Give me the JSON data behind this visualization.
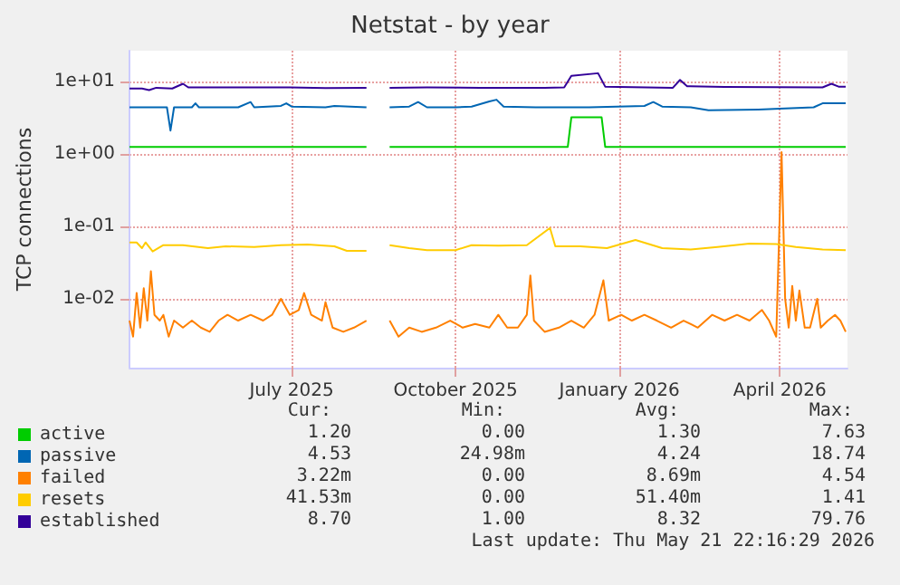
{
  "chart_data": {
    "type": "line",
    "title": "Netstat - by year",
    "ylabel": "TCP connections",
    "log": "y",
    "grid": true,
    "legend": "bottom left",
    "marker": "none",
    "line_style": "solid",
    "xlim": [
      "2025-04-01",
      "2026-05-09"
    ],
    "xticks": [
      {
        "value": "2025-07-01",
        "label": "July 2025"
      },
      {
        "value": "2025-10-01",
        "label": "October 2025"
      },
      {
        "value": "2026-01-01",
        "label": "January 2026"
      },
      {
        "value": "2026-04-01",
        "label": "April 2026"
      }
    ],
    "ylim": [
      0.00112,
      26.6
    ],
    "yticks": [
      {
        "value": 0.01,
        "label": "1e-02"
      },
      {
        "value": 0.1,
        "label": "1e-01"
      },
      {
        "value": 1,
        "label": "1e+00"
      },
      {
        "value": 10,
        "label": "1e+01"
      }
    ],
    "series": [
      {
        "name": "active",
        "color": "#00cc00",
        "x": [
          "2025-04-01",
          "2025-08-12",
          "2025-08-18",
          "2025-08-25",
          "2025-12-03",
          "2025-12-05",
          "2025-12-22",
          "2025-12-24",
          "2026-05-08"
        ],
        "values": [
          1.25,
          1.25,
          null,
          1.25,
          1.25,
          3.2,
          3.2,
          1.25,
          1.25
        ]
      },
      {
        "name": "passive",
        "color": "#0066b3",
        "x": [
          "2025-04-01",
          "2025-04-18",
          "2025-04-22",
          "2025-04-24",
          "2025-04-26",
          "2025-05-06",
          "2025-05-08",
          "2025-05-10",
          "2025-06-01",
          "2025-06-08",
          "2025-06-10",
          "2025-06-25",
          "2025-06-28",
          "2025-07-01",
          "2025-07-20",
          "2025-07-25",
          "2025-08-12",
          "2025-08-18",
          "2025-08-25",
          "2025-09-05",
          "2025-09-10",
          "2025-09-15",
          "2025-10-01",
          "2025-10-10",
          "2025-10-20",
          "2025-10-24",
          "2025-10-28",
          "2025-11-15",
          "2025-12-15",
          "2026-01-15",
          "2026-01-20",
          "2026-01-25",
          "2026-02-10",
          "2026-02-20",
          "2026-03-20",
          "2026-04-01",
          "2026-04-20",
          "2026-04-25",
          "2026-05-08"
        ],
        "values": [
          4.4,
          4.4,
          4.4,
          2.1,
          4.4,
          4.4,
          5.0,
          4.4,
          4.4,
          5.2,
          4.4,
          4.6,
          5.0,
          4.5,
          4.4,
          4.6,
          4.4,
          null,
          4.4,
          4.5,
          5.2,
          4.4,
          4.4,
          4.5,
          5.3,
          5.6,
          4.5,
          4.4,
          4.4,
          4.6,
          5.2,
          4.5,
          4.4,
          4.0,
          4.1,
          4.2,
          4.4,
          5.0,
          5.0
        ]
      },
      {
        "name": "failed",
        "color": "#ff8000",
        "x": [
          "2025-04-01",
          "2025-04-03",
          "2025-04-05",
          "2025-04-07",
          "2025-04-09",
          "2025-04-11",
          "2025-04-13",
          "2025-04-15",
          "2025-04-18",
          "2025-04-20",
          "2025-04-23",
          "2025-04-26",
          "2025-05-01",
          "2025-05-06",
          "2025-05-11",
          "2025-05-16",
          "2025-05-21",
          "2025-05-26",
          "2025-06-01",
          "2025-06-08",
          "2025-06-15",
          "2025-06-20",
          "2025-06-25",
          "2025-06-30",
          "2025-07-05",
          "2025-07-08",
          "2025-07-12",
          "2025-07-18",
          "2025-07-20",
          "2025-07-24",
          "2025-07-30",
          "2025-08-05",
          "2025-08-12",
          "2025-08-18",
          "2025-08-25",
          "2025-08-30",
          "2025-09-05",
          "2025-09-12",
          "2025-09-20",
          "2025-09-28",
          "2025-10-05",
          "2025-10-12",
          "2025-10-20",
          "2025-10-25",
          "2025-10-30",
          "2025-11-05",
          "2025-11-10",
          "2025-11-12",
          "2025-11-14",
          "2025-11-20",
          "2025-11-28",
          "2025-12-05",
          "2025-12-12",
          "2025-12-18",
          "2025-12-23",
          "2025-12-26",
          "2026-01-02",
          "2026-01-08",
          "2026-01-15",
          "2026-01-22",
          "2026-01-30",
          "2026-02-06",
          "2026-02-14",
          "2026-02-22",
          "2026-03-01",
          "2026-03-08",
          "2026-03-15",
          "2026-03-22",
          "2026-03-26",
          "2026-03-30",
          "2026-04-02",
          "2026-04-04",
          "2026-04-06",
          "2026-04-08",
          "2026-04-10",
          "2026-04-12",
          "2026-04-15",
          "2026-04-18",
          "2026-04-22",
          "2026-04-24",
          "2026-04-28",
          "2026-05-02",
          "2026-05-05",
          "2026-05-08"
        ],
        "values": [
          0.005,
          0.003,
          0.012,
          0.004,
          0.014,
          0.005,
          0.024,
          0.006,
          0.005,
          0.006,
          0.003,
          0.005,
          0.004,
          0.005,
          0.004,
          0.0035,
          0.005,
          0.006,
          0.005,
          0.006,
          0.005,
          0.006,
          0.01,
          0.006,
          0.007,
          0.012,
          0.006,
          0.005,
          0.009,
          0.004,
          0.0035,
          0.004,
          0.005,
          null,
          0.005,
          0.003,
          0.004,
          0.0035,
          0.004,
          0.005,
          0.004,
          0.0045,
          0.004,
          0.006,
          0.004,
          0.004,
          0.006,
          0.021,
          0.005,
          0.0035,
          0.004,
          0.005,
          0.004,
          0.006,
          0.018,
          0.005,
          0.006,
          0.005,
          0.006,
          0.005,
          0.004,
          0.005,
          0.004,
          0.006,
          0.005,
          0.006,
          0.005,
          0.007,
          0.005,
          0.003,
          1.06,
          0.01,
          0.004,
          0.015,
          0.005,
          0.013,
          0.004,
          0.004,
          0.01,
          0.004,
          0.005,
          0.006,
          0.005,
          0.0035
        ]
      },
      {
        "name": "resets",
        "color": "#ffcc00",
        "x": [
          "2025-04-01",
          "2025-04-05",
          "2025-04-08",
          "2025-04-10",
          "2025-04-14",
          "2025-04-20",
          "2025-05-01",
          "2025-05-15",
          "2025-05-25",
          "2025-06-10",
          "2025-06-25",
          "2025-07-10",
          "2025-07-25",
          "2025-08-01",
          "2025-08-12",
          "2025-08-18",
          "2025-08-25",
          "2025-09-05",
          "2025-09-15",
          "2025-10-01",
          "2025-10-10",
          "2025-10-25",
          "2025-11-10",
          "2025-11-23",
          "2025-11-26",
          "2025-12-10",
          "2025-12-25",
          "2026-01-10",
          "2026-01-25",
          "2026-02-10",
          "2026-02-25",
          "2026-03-15",
          "2026-03-30",
          "2026-04-10",
          "2026-04-25",
          "2026-05-08"
        ],
        "values": [
          0.06,
          0.06,
          0.05,
          0.06,
          0.045,
          0.055,
          0.055,
          0.05,
          0.053,
          0.052,
          0.055,
          0.056,
          0.053,
          0.046,
          0.046,
          null,
          0.055,
          0.05,
          0.047,
          0.047,
          0.055,
          0.054,
          0.055,
          0.095,
          0.053,
          0.053,
          0.05,
          0.065,
          0.05,
          0.048,
          0.052,
          0.058,
          0.057,
          0.052,
          0.048,
          0.047
        ]
      },
      {
        "name": "established",
        "color": "#330099",
        "x": [
          "2025-04-01",
          "2025-04-08",
          "2025-04-12",
          "2025-04-16",
          "2025-04-25",
          "2025-05-01",
          "2025-05-04",
          "2025-06-30",
          "2025-07-20",
          "2025-08-12",
          "2025-08-18",
          "2025-08-25",
          "2025-09-15",
          "2025-10-15",
          "2025-11-20",
          "2025-12-01",
          "2025-12-05",
          "2025-12-20",
          "2025-12-24",
          "2026-01-31",
          "2026-02-04",
          "2026-02-08",
          "2026-03-01",
          "2026-04-25",
          "2026-04-30",
          "2026-05-04",
          "2026-05-08"
        ],
        "values": [
          8.0,
          8.0,
          7.6,
          8.2,
          8.0,
          9.3,
          8.3,
          8.3,
          8.1,
          8.2,
          null,
          8.2,
          8.3,
          8.2,
          8.2,
          8.3,
          12.0,
          13.0,
          8.5,
          8.2,
          10.5,
          8.6,
          8.4,
          8.3,
          9.3,
          8.5,
          8.5
        ]
      }
    ],
    "annotations": [
      "Cur:",
      "Min:",
      "Avg:",
      "Max:",
      "1.20",
      "0.00",
      "1.30",
      "7.63",
      "4.53",
      "24.98m",
      "4.24",
      "18.74",
      "3.22m",
      "0.00",
      "8.69m",
      "4.54",
      "41.53m",
      "0.00",
      "51.40m",
      "1.41",
      "8.70",
      "1.00",
      "8.32",
      "79.76",
      "Last update: Thu May 21 22:16:29 2026"
    ]
  }
}
